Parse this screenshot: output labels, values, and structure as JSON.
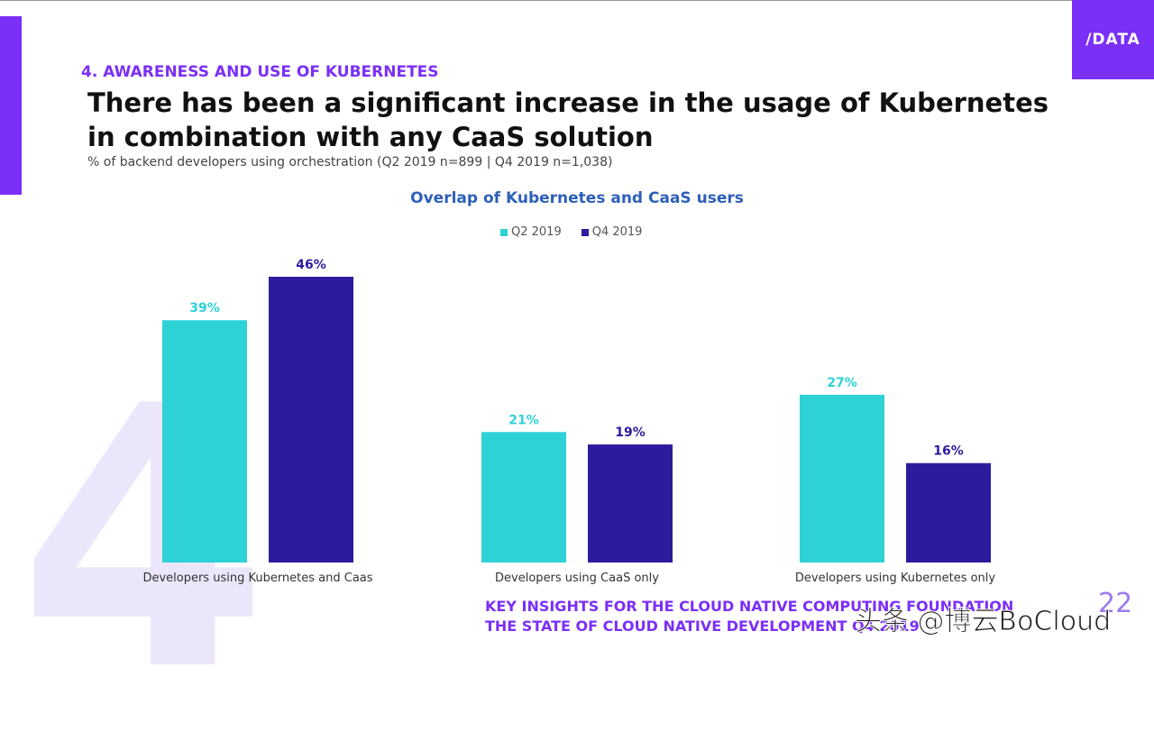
{
  "logo": "/DATA",
  "background_numeral": "4",
  "section_label": "4.   AWARENESS AND USE OF KUBERNETES",
  "headline": "There has been a significant increase in the usage of Kubernetes in combination with any CaaS solution",
  "subtitle": "% of backend developers using orchestration (Q2 2019 n=899 | Q4 2019 n=1,038)",
  "footer": {
    "line1": "KEY INSIGHTS FOR THE CLOUD NATIVE COMPUTING FOUNDATION",
    "line2": "THE STATE OF CLOUD NATIVE DEVELOPMENT Q4 2019"
  },
  "page_number": "22",
  "watermark": "头条 @博云BoCloud",
  "colors": {
    "accent": "#7b2ff7",
    "q2": "#2ed2d6",
    "q4": "#2d1b9e",
    "title_blue": "#2e5fb8"
  },
  "chart_data": {
    "type": "bar",
    "title": "Overlap of Kubernetes and CaaS users",
    "categories": [
      "Developers using Kubernetes and Caas",
      "Developers using CaaS only",
      "Developers using Kubernetes only"
    ],
    "series": [
      {
        "name": "Q2 2019",
        "values": [
          39,
          21,
          27
        ],
        "labels": [
          "39%",
          "21%",
          "27%"
        ]
      },
      {
        "name": "Q4 2019",
        "values": [
          46,
          19,
          16
        ],
        "labels": [
          "46%",
          "19%",
          "16%"
        ]
      }
    ],
    "ylim": [
      0,
      46
    ],
    "legend": "top-center",
    "grid": false
  }
}
